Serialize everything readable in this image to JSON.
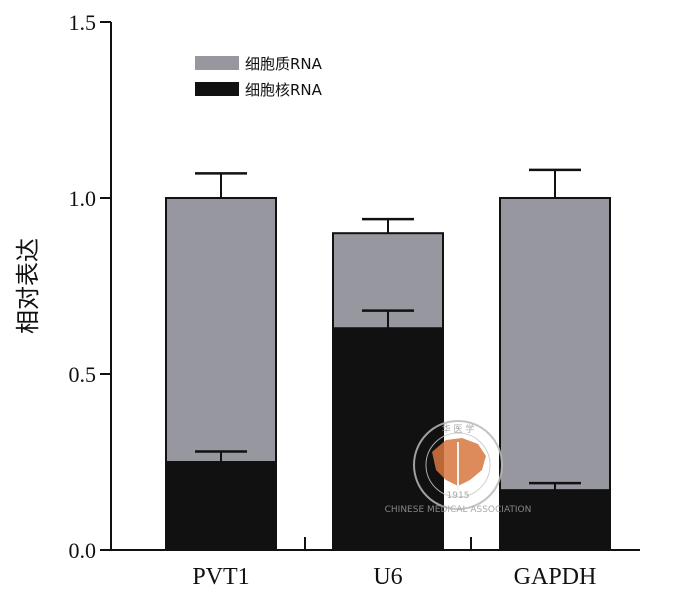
{
  "chart_data": {
    "type": "bar",
    "stacked": true,
    "categories": [
      "PVT1",
      "U6",
      "GAPDH"
    ],
    "series": [
      {
        "name": "细胞核RNA",
        "values": [
          0.25,
          0.63,
          0.17
        ],
        "error": [
          0.03,
          0.05,
          0.02
        ],
        "color": "#111111"
      },
      {
        "name": "细胞质RNA",
        "values": [
          0.75,
          0.27,
          0.83
        ],
        "error": [
          0.07,
          0.04,
          0.08
        ],
        "color": "#97979f"
      }
    ],
    "ylabel": "相对表达",
    "xlabel": "",
    "ylim": [
      0,
      1.5
    ],
    "yticks": [
      "0.0",
      "0.5",
      "1.0",
      "1.5"
    ],
    "legend_position": "top-left",
    "grid": false
  },
  "watermark": {
    "text_top": "华 医 学",
    "text_bottom": "CHINESE MEDICAL ASSOCIATION",
    "year": "1915",
    "color": "#d9773f"
  }
}
